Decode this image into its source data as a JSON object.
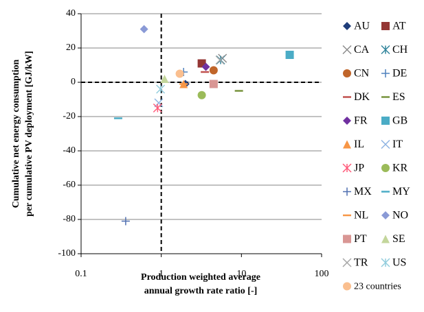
{
  "chart_data": {
    "type": "scatter",
    "x_label": [
      "Production weighted average",
      "annual growth rate ratio [-]"
    ],
    "y_label": [
      "Cumulative net energy consumption",
      "per cumulative PV deployment [GJ/kW]"
    ],
    "xscale": "log",
    "xlim": [
      0.1,
      100
    ],
    "xticks": [
      0.1,
      1,
      10,
      100
    ],
    "ylim": [
      -100,
      40
    ],
    "yticks": [
      -100,
      -80,
      -60,
      -40,
      -20,
      0,
      20,
      40
    ],
    "grid": true,
    "vline": 1,
    "hline": 0,
    "legend": "right",
    "series": [
      {
        "name": "AU",
        "marker": "diamond",
        "color": "#1f3d7a",
        "x": [
          2.0
        ],
        "values": [
          -1
        ]
      },
      {
        "name": "AT",
        "marker": "square",
        "color": "#943634",
        "x": [
          3.2
        ],
        "values": [
          11
        ]
      },
      {
        "name": "CA",
        "marker": "x",
        "color": "#8c8c8c",
        "x": [
          5.8
        ],
        "values": [
          14
        ]
      },
      {
        "name": "CH",
        "marker": "star",
        "color": "#31859c",
        "x": [
          5.5
        ],
        "values": [
          13
        ]
      },
      {
        "name": "CN",
        "marker": "circle",
        "color": "#c0652a",
        "x": [
          4.5
        ],
        "values": [
          7
        ]
      },
      {
        "name": "DE",
        "marker": "plus",
        "color": "#4f81bd",
        "x": [
          1.9
        ],
        "values": [
          6
        ]
      },
      {
        "name": "DK",
        "marker": "dash",
        "color": "#c0504d",
        "x": [
          3.5
        ],
        "values": [
          6
        ]
      },
      {
        "name": "ES",
        "marker": "dash",
        "color": "#77933c",
        "x": [
          9.3
        ],
        "values": [
          -5
        ]
      },
      {
        "name": "FR",
        "marker": "diamond",
        "color": "#7030a0",
        "x": [
          3.6
        ],
        "values": [
          9
        ]
      },
      {
        "name": "GB",
        "marker": "square",
        "color": "#4bacc6",
        "x": [
          40
        ],
        "values": [
          16
        ]
      },
      {
        "name": "IL",
        "marker": "triangle",
        "color": "#f79646",
        "x": [
          1.9
        ],
        "values": [
          -1
        ]
      },
      {
        "name": "IT",
        "marker": "x",
        "color": "#8eb4e3",
        "x": [
          0.93
        ],
        "values": [
          -12
        ]
      },
      {
        "name": "JP",
        "marker": "star",
        "color": "#ff5a7a",
        "x": [
          0.9
        ],
        "values": [
          -15
        ]
      },
      {
        "name": "KR",
        "marker": "circle",
        "color": "#9bbb59",
        "x": [
          3.2
        ],
        "values": [
          -7.5
        ]
      },
      {
        "name": "MX",
        "marker": "plus",
        "color": "#4f6fb0",
        "x": [
          0.36
        ],
        "values": [
          -81
        ]
      },
      {
        "name": "MY",
        "marker": "dash",
        "color": "#4bacc6",
        "x": [
          0.29
        ],
        "values": [
          -21
        ]
      },
      {
        "name": "NL",
        "marker": "dash",
        "color": "#f79646",
        "x": [
          1.9
        ],
        "values": [
          -1
        ]
      },
      {
        "name": "NO",
        "marker": "diamond",
        "color": "#8a9ad6",
        "x": [
          0.61
        ],
        "values": [
          31
        ]
      },
      {
        "name": "PT",
        "marker": "square",
        "color": "#d99694",
        "x": [
          4.5
        ],
        "values": [
          -1
        ]
      },
      {
        "name": "SE",
        "marker": "triangle",
        "color": "#c3d69b",
        "x": [
          1.1
        ],
        "values": [
          2
        ]
      },
      {
        "name": "TR",
        "marker": "x",
        "color": "#a6a6a6",
        "x": [
          5.4
        ],
        "values": [
          13
        ]
      },
      {
        "name": "US",
        "marker": "star",
        "color": "#93cddd",
        "x": [
          0.98
        ],
        "values": [
          -4
        ]
      },
      {
        "name": "23 countries",
        "marker": "circle",
        "color": "#fabf8f",
        "x": [
          1.7
        ],
        "values": [
          5
        ]
      }
    ]
  }
}
